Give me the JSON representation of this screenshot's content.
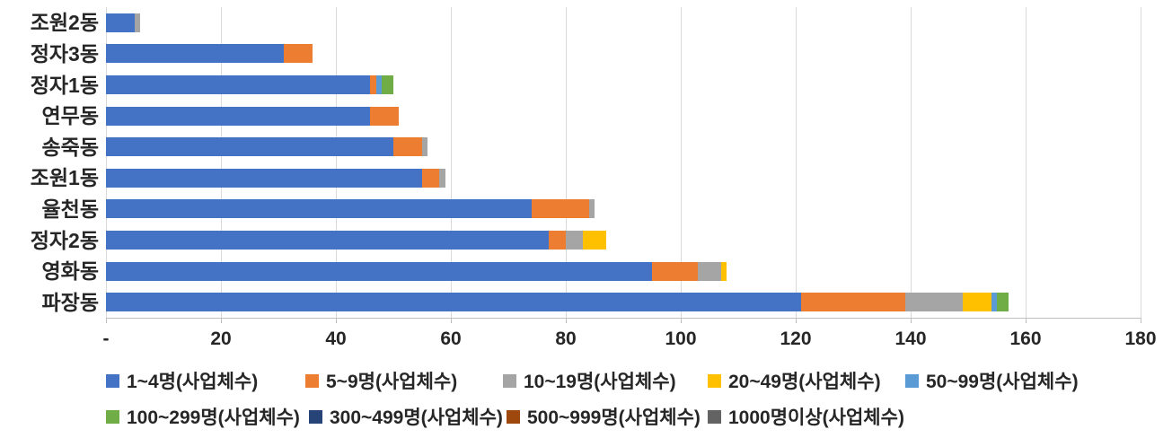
{
  "chart_data": {
    "type": "bar",
    "orientation": "horizontal",
    "stacked": true,
    "title": "",
    "xlabel": "",
    "ylabel": "",
    "grid": true,
    "legend_position": "bottom",
    "x_axis": {
      "min": 0,
      "max": 180,
      "step": 20,
      "tick_labels": [
        "-",
        "20",
        "40",
        "60",
        "80",
        "100",
        "120",
        "140",
        "160",
        "180"
      ]
    },
    "categories": [
      "조원2동",
      "정자3동",
      "정자1동",
      "연무동",
      "송죽동",
      "조원1동",
      "율천동",
      "정자2동",
      "영화동",
      "파장동"
    ],
    "series": [
      {
        "name": "1~4명(사업체수)",
        "color": "#4472c4",
        "values": [
          5,
          31,
          46,
          46,
          50,
          55,
          74,
          77,
          95,
          121
        ]
      },
      {
        "name": "5~9명(사업체수)",
        "color": "#ed7d31",
        "values": [
          0,
          5,
          1,
          5,
          5,
          3,
          10,
          3,
          8,
          18
        ]
      },
      {
        "name": "10~19명(사업체수)",
        "color": "#a5a5a5",
        "values": [
          1,
          0,
          0,
          0,
          1,
          1,
          1,
          3,
          4,
          10
        ]
      },
      {
        "name": "20~49명(사업체수)",
        "color": "#ffc000",
        "values": [
          0,
          0,
          0,
          0,
          0,
          0,
          0,
          4,
          1,
          5
        ]
      },
      {
        "name": "50~99명(사업체수)",
        "color": "#5b9bd5",
        "values": [
          0,
          0,
          1,
          0,
          0,
          0,
          0,
          0,
          0,
          1
        ]
      },
      {
        "name": "100~299명(사업체수)",
        "color": "#70ad47",
        "values": [
          0,
          0,
          2,
          0,
          0,
          0,
          0,
          0,
          0,
          2
        ]
      },
      {
        "name": "300~499명(사업체수)",
        "color": "#264478",
        "values": [
          0,
          0,
          0,
          0,
          0,
          0,
          0,
          0,
          0,
          0
        ]
      },
      {
        "name": "500~999명(사업체수)",
        "color": "#9e480e",
        "values": [
          0,
          0,
          0,
          0,
          0,
          0,
          0,
          0,
          0,
          0
        ]
      },
      {
        "name": "1000명이상(사업체수)",
        "color": "#636363",
        "values": [
          0,
          0,
          0,
          0,
          0,
          0,
          0,
          0,
          0,
          0
        ]
      }
    ],
    "colors": {
      "gridline": "#d9d9d9",
      "axis_line": "#bfbfbf",
      "label_text": "#262626"
    }
  }
}
